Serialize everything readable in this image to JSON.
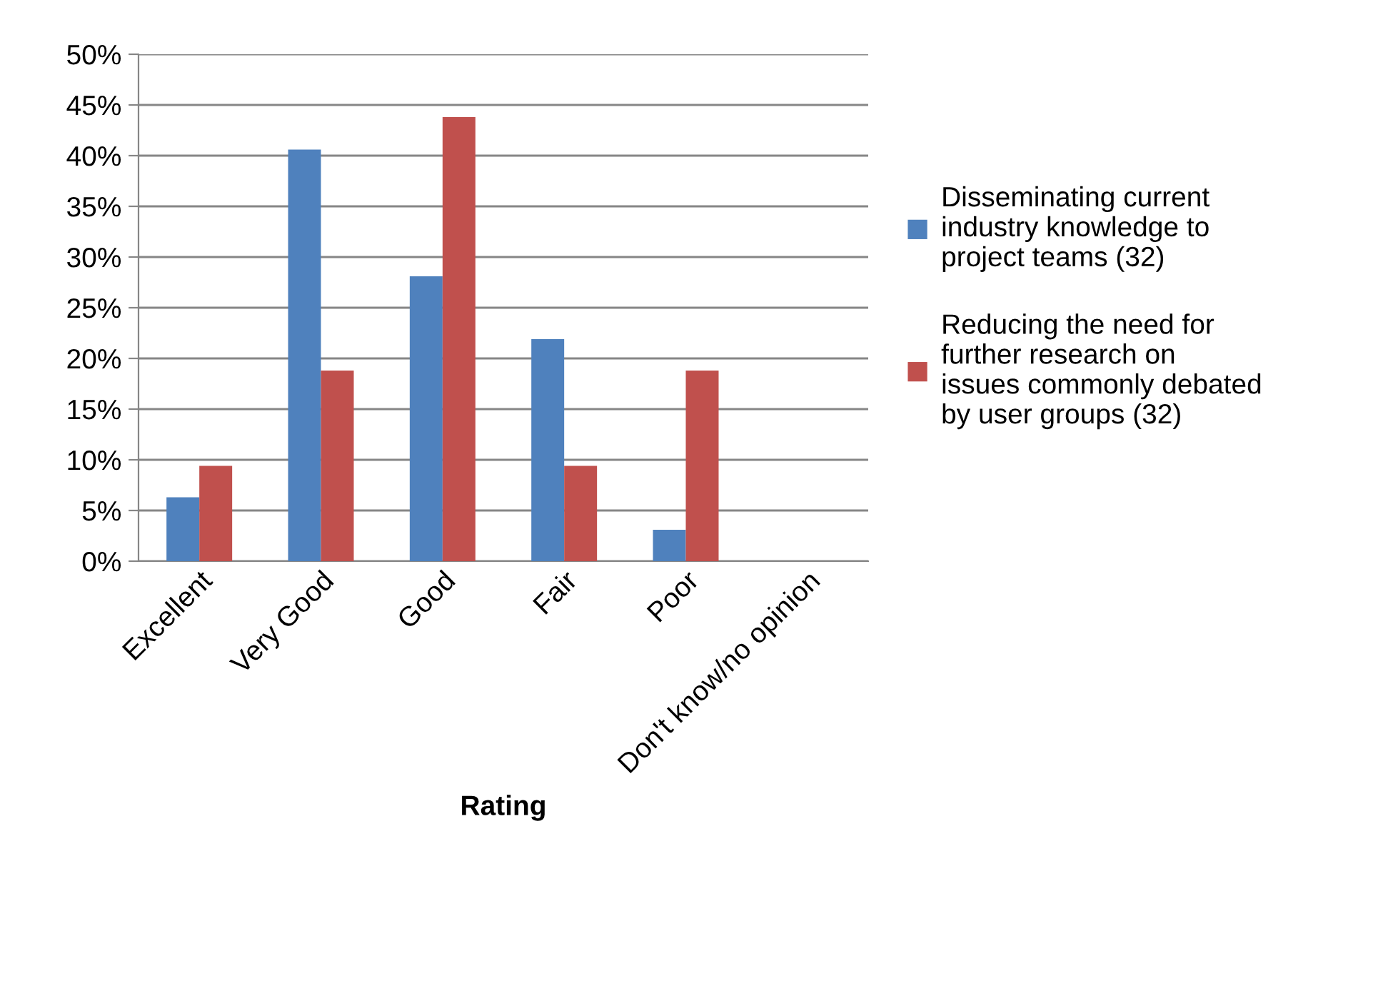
{
  "chart_data": {
    "type": "bar",
    "xlabel": "Rating",
    "categories": [
      "Excellent",
      "Very Good",
      "Good",
      "Fair",
      "Poor",
      "Don't know/no opinion"
    ],
    "series": [
      {
        "name": "Disseminating current industry knowledge to project teams (32)",
        "color": "#4f81bd",
        "values": [
          6.3,
          40.6,
          28.1,
          21.9,
          3.1,
          0
        ]
      },
      {
        "name": "Reducing the need for further research on issues commonly debated by user groups (32)",
        "color": "#c0504d",
        "values": [
          9.4,
          18.8,
          43.8,
          9.4,
          18.8,
          0
        ]
      }
    ],
    "ylim": [
      0,
      50
    ],
    "yticks": [
      {
        "value": 0,
        "label": "0%"
      },
      {
        "value": 5,
        "label": "5%"
      },
      {
        "value": 10,
        "label": "10%"
      },
      {
        "value": 15,
        "label": "15%"
      },
      {
        "value": 20,
        "label": "20%"
      },
      {
        "value": 25,
        "label": "25%"
      },
      {
        "value": 30,
        "label": "30%"
      },
      {
        "value": 35,
        "label": "35%"
      },
      {
        "value": 40,
        "label": "40%"
      },
      {
        "value": 45,
        "label": "45%"
      },
      {
        "value": 50,
        "label": "50%"
      }
    ],
    "grid": "y",
    "legend": "right"
  }
}
